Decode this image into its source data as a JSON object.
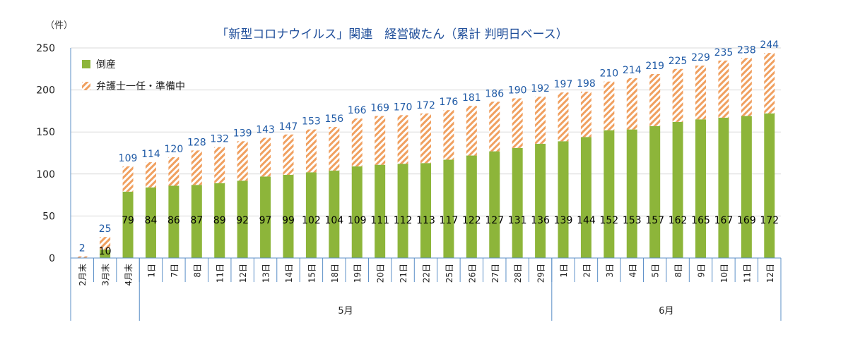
{
  "chart_data": {
    "type": "bar",
    "stacked": true,
    "title": "「新型コロナウイルス」関連　経営破たん（累計 判明日ベース）",
    "unit_label": "（件）",
    "xlabel": "",
    "ylabel": "",
    "ylim": [
      0,
      250
    ],
    "yticks": [
      "0",
      "50",
      "100",
      "150",
      "200",
      "250"
    ],
    "grid": true,
    "legend_position": "top-left",
    "categories": [
      "2月末",
      "3月末",
      "4月末",
      "1日",
      "7日",
      "8日",
      "11日",
      "12日",
      "13日",
      "14日",
      "15日",
      "18日",
      "19日",
      "20日",
      "21日",
      "22日",
      "25日",
      "26日",
      "27日",
      "28日",
      "29日",
      "1日",
      "2日",
      "3日",
      "4日",
      "5日",
      "8日",
      "9日",
      "10日",
      "11日",
      "12日"
    ],
    "month_groups": [
      {
        "label": "",
        "count": 3
      },
      {
        "label": "5月",
        "count": 18
      },
      {
        "label": "6月",
        "count": 10
      }
    ],
    "series": [
      {
        "name": "倒産",
        "color": "#8db53a",
        "values": [
          0,
          10,
          79,
          84,
          86,
          87,
          89,
          92,
          97,
          99,
          102,
          104,
          109,
          111,
          112,
          113,
          117,
          122,
          127,
          131,
          136,
          139,
          144,
          152,
          153,
          157,
          162,
          165,
          167,
          169,
          172
        ]
      },
      {
        "name": "弁護士一任・準備中",
        "color": "#f0a060",
        "values": [
          2,
          15,
          30,
          30,
          34,
          41,
          43,
          47,
          46,
          48,
          51,
          52,
          57,
          58,
          58,
          59,
          59,
          59,
          59,
          59,
          56,
          58,
          54,
          58,
          61,
          62,
          63,
          64,
          68,
          69,
          72
        ]
      }
    ],
    "bottom_labels": [
      "",
      "10",
      "79",
      "84",
      "86",
      "87",
      "89",
      "92",
      "97",
      "99",
      "102",
      "104",
      "109",
      "111",
      "112",
      "113",
      "117",
      "122",
      "127",
      "131",
      "136",
      "139",
      "144",
      "152",
      "153",
      "157",
      "162",
      "165",
      "167",
      "169",
      "172"
    ],
    "totals": [
      2,
      25,
      109,
      114,
      120,
      128,
      132,
      139,
      143,
      147,
      153,
      156,
      166,
      169,
      170,
      172,
      176,
      181,
      186,
      190,
      192,
      197,
      198,
      210,
      214,
      219,
      225,
      229,
      235,
      238,
      244
    ]
  },
  "colors": {
    "axis": "#5b8fc7",
    "total_label": "#1f5aa6",
    "bottom_label": "#000000",
    "title": "#1f4e9a",
    "grid": "#d9d9d9"
  }
}
